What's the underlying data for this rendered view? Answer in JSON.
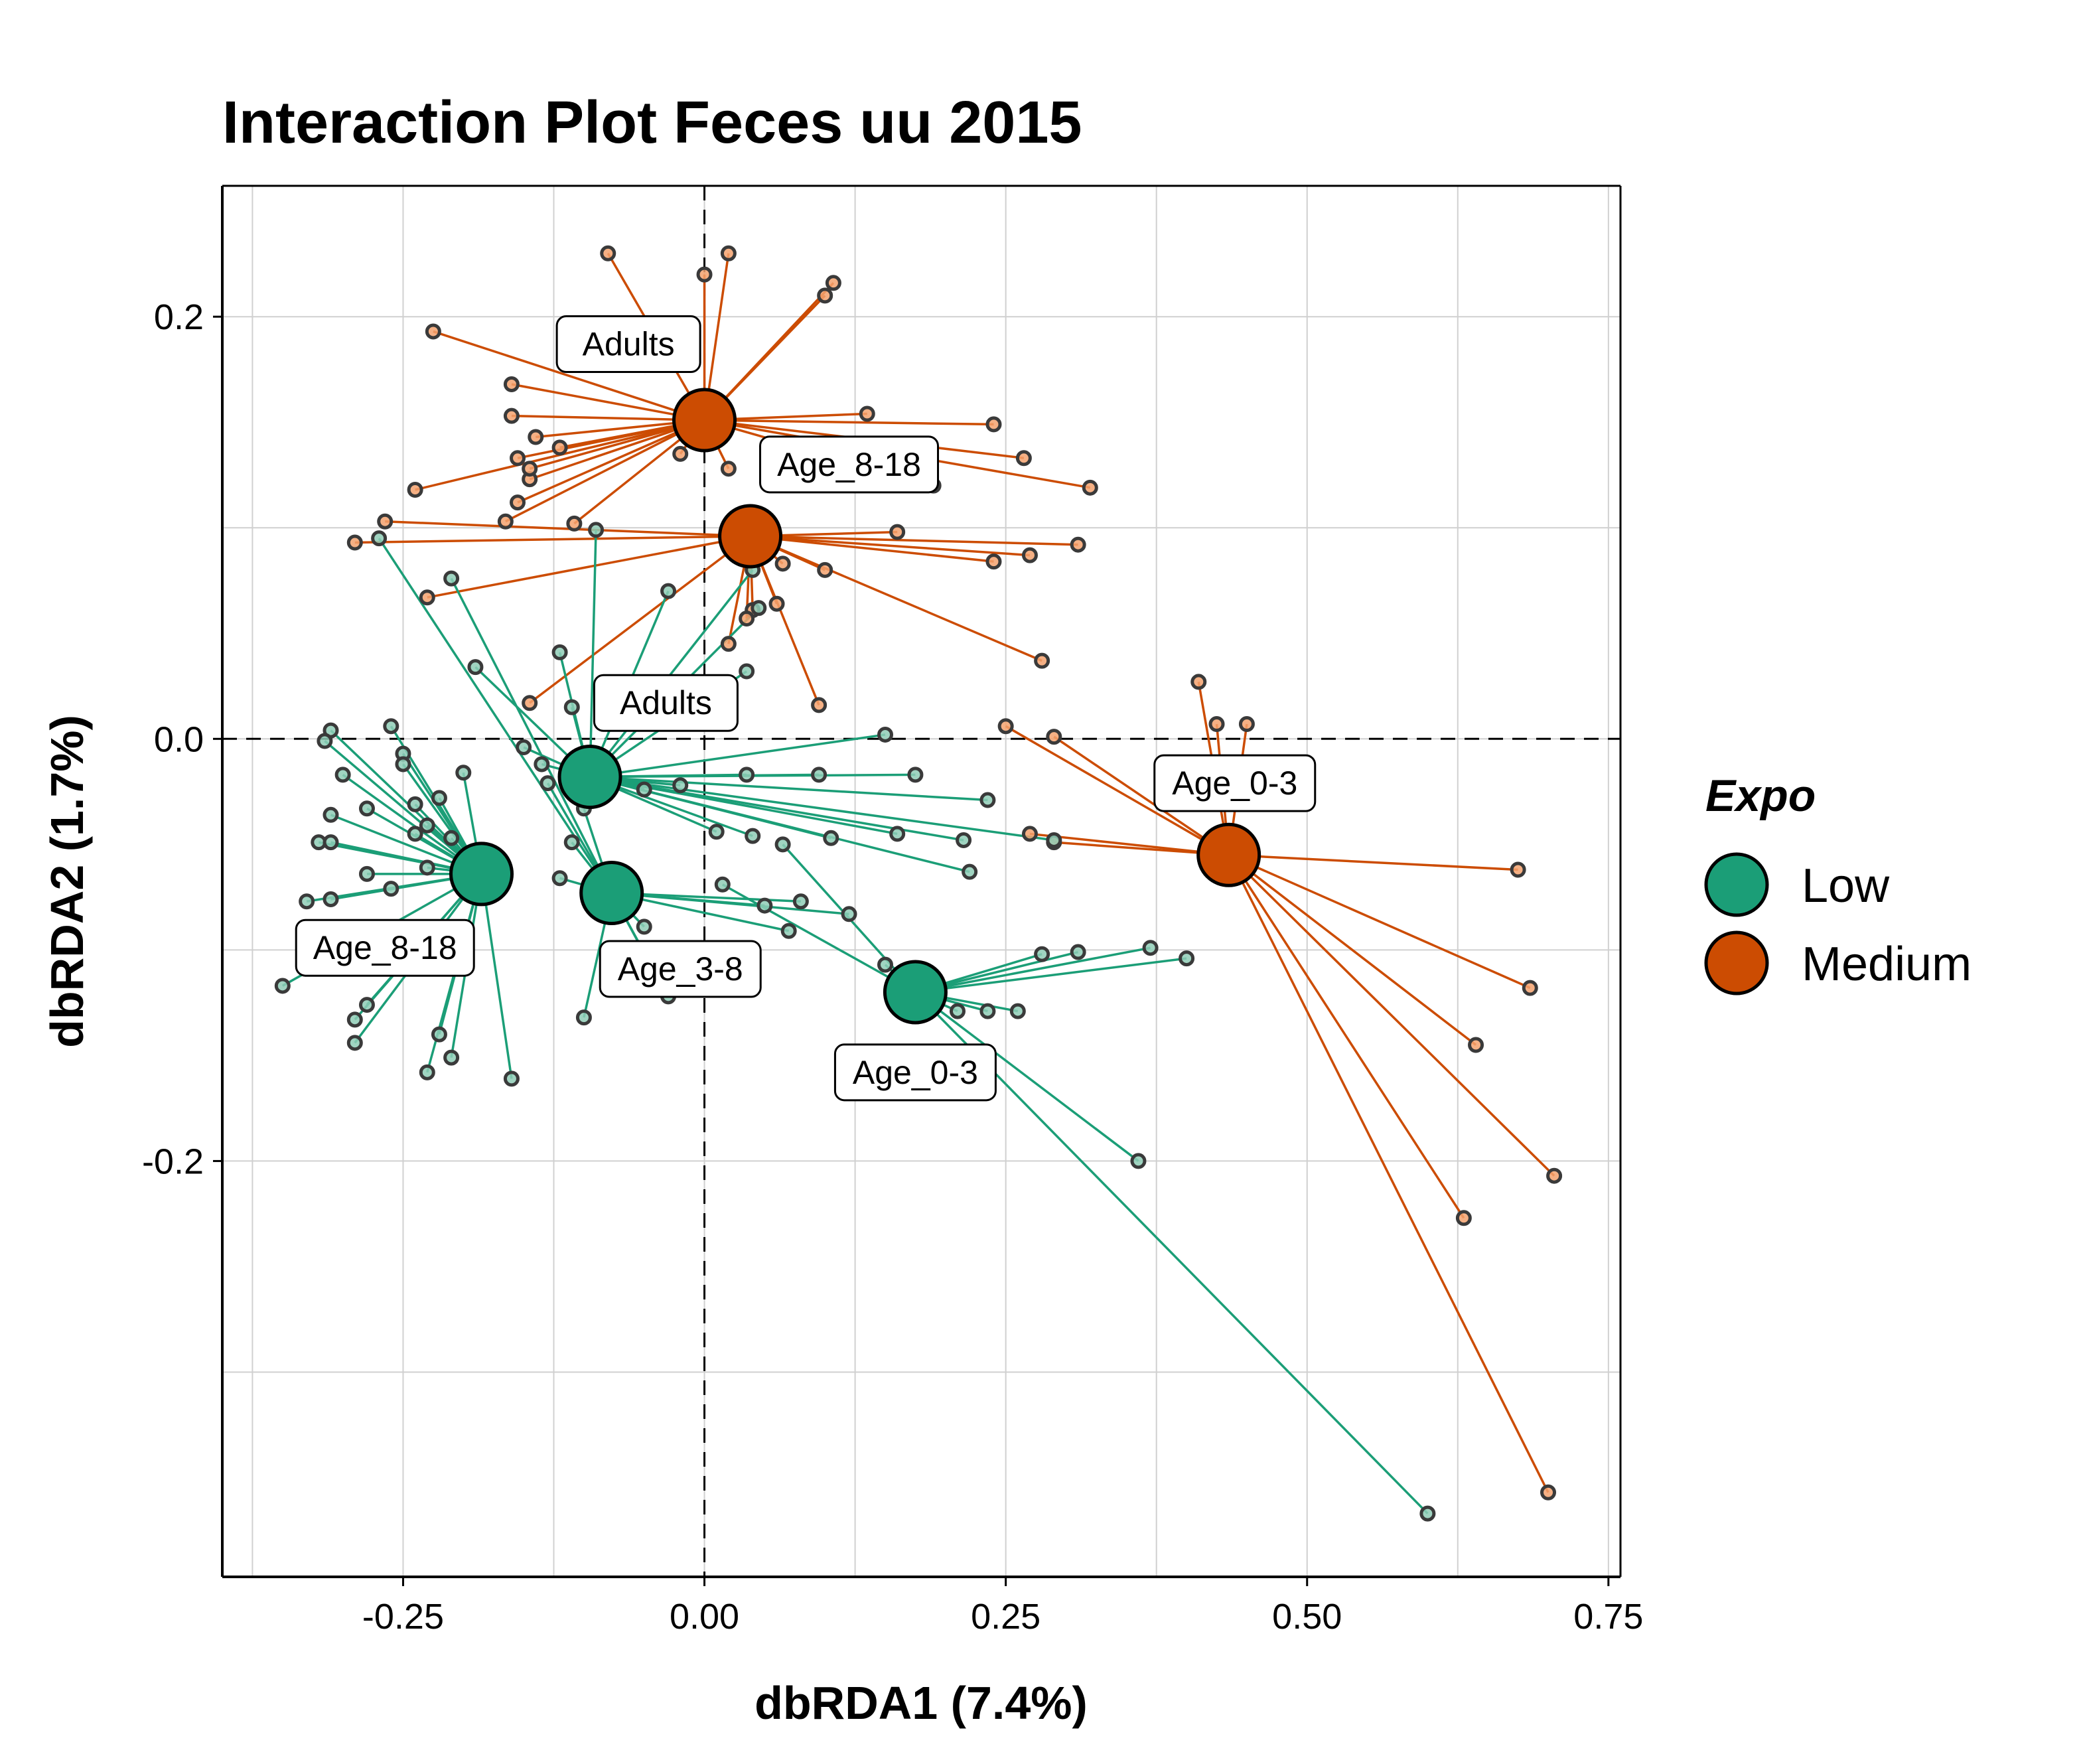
{
  "chart_data": {
    "type": "scatter",
    "title": "Interaction Plot Feces uu 2015",
    "xlabel": "dbRDA1 (7.4%)",
    "ylabel": "dbRDA2 (1.7%)",
    "xlim": [
      -0.4,
      0.76
    ],
    "ylim": [
      -0.397,
      0.262
    ],
    "xticks": [
      -0.25,
      0.0,
      0.25,
      0.5,
      0.75
    ],
    "xtick_labels": [
      "-0.25",
      "0.00",
      "0.25",
      "0.50",
      "0.75"
    ],
    "yticks": [
      -0.2,
      0.0,
      0.2
    ],
    "ytick_labels": [
      "-0.2",
      "0.0",
      "0.2"
    ],
    "grid": true,
    "reference_lines": {
      "x": 0,
      "y": 0,
      "style": "dashed"
    },
    "legend": {
      "title": "Expo",
      "placement": "right",
      "entries": [
        {
          "name": "Low",
          "color": "#1b9e77"
        },
        {
          "name": "Medium",
          "color": "#d95f02"
        }
      ]
    },
    "groups": [
      {
        "expo": "Medium",
        "label": "Adults",
        "color": "#cc4c02",
        "centroid": [
          0.0,
          0.151
        ],
        "label_pos": [
          -0.063,
          0.187
        ],
        "points": [
          [
            -0.08,
            0.23
          ],
          [
            0.02,
            0.23
          ],
          [
            -0.225,
            0.193
          ],
          [
            0.0,
            0.22
          ],
          [
            0.107,
            0.216
          ],
          [
            0.1,
            0.21
          ],
          [
            -0.16,
            0.168
          ],
          [
            0.135,
            0.154
          ],
          [
            0.24,
            0.149
          ],
          [
            -0.16,
            0.153
          ],
          [
            -0.14,
            0.143
          ],
          [
            -0.12,
            0.138
          ],
          [
            -0.155,
            0.133
          ],
          [
            -0.145,
            0.123
          ],
          [
            0.265,
            0.133
          ],
          [
            0.32,
            0.119
          ],
          [
            0.19,
            0.12
          ],
          [
            -0.24,
            0.118
          ],
          [
            -0.155,
            0.112
          ],
          [
            -0.165,
            0.103
          ],
          [
            -0.108,
            0.102
          ],
          [
            -0.02,
            0.135
          ],
          [
            0.02,
            0.128
          ],
          [
            -0.145,
            0.128
          ]
        ]
      },
      {
        "expo": "Medium",
        "label": "Age_8-18",
        "color": "#cc4c02",
        "centroid": [
          0.038,
          0.096
        ],
        "label_pos": [
          0.12,
          0.13
        ],
        "points": [
          [
            -0.265,
            0.103
          ],
          [
            -0.29,
            0.093
          ],
          [
            0.31,
            0.092
          ],
          [
            0.27,
            0.087
          ],
          [
            0.24,
            0.084
          ],
          [
            0.1,
            0.08
          ],
          [
            0.065,
            0.083
          ],
          [
            0.16,
            0.098
          ],
          [
            -0.23,
            0.067
          ],
          [
            0.04,
            0.061
          ],
          [
            0.06,
            0.064
          ],
          [
            0.035,
            0.057
          ],
          [
            0.02,
            0.045
          ],
          [
            0.28,
            0.037
          ],
          [
            -0.145,
            0.017
          ],
          [
            0.095,
            0.016
          ]
        ]
      },
      {
        "expo": "Medium",
        "label": "Age_0-3",
        "color": "#cc4c02",
        "centroid": [
          0.435,
          -0.055
        ],
        "label_pos": [
          0.44,
          -0.021
        ],
        "points": [
          [
            0.41,
            0.027
          ],
          [
            0.425,
            0.007
          ],
          [
            0.45,
            0.007
          ],
          [
            0.25,
            0.006
          ],
          [
            0.29,
            0.001
          ],
          [
            0.27,
            -0.045
          ],
          [
            0.29,
            -0.049
          ],
          [
            0.675,
            -0.062
          ],
          [
            0.685,
            -0.118
          ],
          [
            0.64,
            -0.145
          ],
          [
            0.705,
            -0.207
          ],
          [
            0.63,
            -0.227
          ],
          [
            0.7,
            -0.357
          ]
        ]
      },
      {
        "expo": "Low",
        "label": "Adults",
        "color": "#1b9e77",
        "centroid": [
          -0.095,
          -0.018
        ],
        "label_pos": [
          -0.032,
          0.017
        ],
        "points": [
          [
            -0.12,
            0.041
          ],
          [
            -0.11,
            0.015
          ],
          [
            -0.19,
            0.034
          ],
          [
            -0.15,
            -0.004
          ],
          [
            -0.09,
            0.099
          ],
          [
            -0.03,
            0.07
          ],
          [
            0.04,
            0.08
          ],
          [
            0.045,
            0.062
          ],
          [
            0.035,
            0.032
          ],
          [
            0.15,
            0.002
          ],
          [
            0.175,
            -0.017
          ],
          [
            0.235,
            -0.029
          ],
          [
            0.035,
            -0.017
          ],
          [
            0.095,
            -0.017
          ],
          [
            -0.02,
            -0.022
          ],
          [
            -0.135,
            -0.012
          ],
          [
            -0.05,
            -0.024
          ],
          [
            0.01,
            -0.044
          ],
          [
            0.04,
            -0.046
          ],
          [
            0.105,
            -0.047
          ],
          [
            0.16,
            -0.045
          ],
          [
            0.215,
            -0.048
          ],
          [
            0.29,
            -0.048
          ],
          [
            0.22,
            -0.063
          ]
        ]
      },
      {
        "expo": "Low",
        "label": "Age_8-18",
        "color": "#1b9e77",
        "centroid": [
          -0.185,
          -0.064
        ],
        "label_pos": [
          -0.265,
          -0.099
        ],
        "points": [
          [
            -0.31,
            0.004
          ],
          [
            -0.315,
            -0.001
          ],
          [
            -0.26,
            0.006
          ],
          [
            -0.25,
            -0.007
          ],
          [
            -0.25,
            -0.012
          ],
          [
            -0.3,
            -0.017
          ],
          [
            -0.31,
            -0.036
          ],
          [
            -0.28,
            -0.033
          ],
          [
            -0.24,
            -0.031
          ],
          [
            -0.22,
            -0.028
          ],
          [
            -0.2,
            -0.016
          ],
          [
            -0.32,
            -0.049
          ],
          [
            -0.31,
            -0.049
          ],
          [
            -0.28,
            -0.064
          ],
          [
            -0.26,
            -0.071
          ],
          [
            -0.24,
            -0.045
          ],
          [
            -0.23,
            -0.041
          ],
          [
            -0.21,
            -0.047
          ],
          [
            -0.23,
            -0.061
          ],
          [
            -0.33,
            -0.077
          ],
          [
            -0.31,
            -0.076
          ],
          [
            -0.35,
            -0.117
          ],
          [
            -0.28,
            -0.126
          ],
          [
            -0.29,
            -0.133
          ],
          [
            -0.29,
            -0.144
          ],
          [
            -0.22,
            -0.14
          ],
          [
            -0.21,
            -0.151
          ],
          [
            -0.23,
            -0.158
          ],
          [
            -0.16,
            -0.161
          ]
        ]
      },
      {
        "expo": "Low",
        "label": "Age_3-8",
        "color": "#1b9e77",
        "centroid": [
          -0.077,
          -0.073
        ],
        "label_pos": [
          -0.02,
          -0.109
        ],
        "points": [
          [
            -0.27,
            0.095
          ],
          [
            -0.21,
            0.076
          ],
          [
            -0.13,
            -0.021
          ],
          [
            -0.1,
            -0.033
          ],
          [
            -0.11,
            -0.049
          ],
          [
            -0.12,
            -0.066
          ],
          [
            -0.05,
            -0.089
          ],
          [
            0.05,
            -0.079
          ],
          [
            0.08,
            -0.077
          ],
          [
            0.12,
            -0.083
          ],
          [
            -0.1,
            -0.132
          ],
          [
            -0.04,
            -0.112
          ],
          [
            -0.03,
            -0.122
          ],
          [
            0.07,
            -0.091
          ]
        ]
      },
      {
        "expo": "Low",
        "label": "Age_0-3",
        "color": "#1b9e77",
        "centroid": [
          0.175,
          -0.12
        ],
        "label_pos": [
          0.175,
          -0.158
        ],
        "points": [
          [
            0.15,
            -0.107
          ],
          [
            0.21,
            -0.129
          ],
          [
            0.235,
            -0.129
          ],
          [
            0.26,
            -0.129
          ],
          [
            0.28,
            -0.102
          ],
          [
            0.31,
            -0.101
          ],
          [
            0.37,
            -0.099
          ],
          [
            0.4,
            -0.104
          ],
          [
            0.36,
            -0.2
          ],
          [
            0.6,
            -0.367
          ],
          [
            0.065,
            -0.05
          ],
          [
            0.015,
            -0.069
          ]
        ]
      }
    ]
  }
}
